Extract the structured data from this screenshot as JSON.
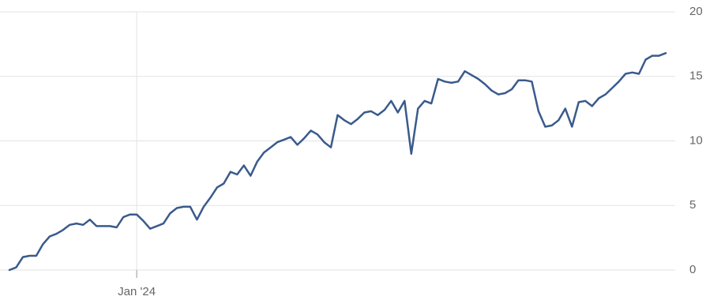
{
  "chart_data": {
    "type": "line",
    "categories": [
      null,
      null,
      null,
      null,
      null,
      null,
      null,
      null,
      null,
      null,
      null,
      null,
      null,
      null,
      null,
      null,
      null,
      null,
      null,
      "Jan '24",
      null,
      null,
      null,
      null,
      null,
      null,
      null,
      null,
      null,
      null,
      null,
      null,
      null,
      null,
      null,
      null,
      null,
      null,
      null,
      null,
      null,
      null,
      null,
      null,
      null,
      null,
      null,
      null,
      null,
      null,
      null,
      null,
      null,
      null,
      null,
      null,
      null,
      null,
      null,
      null,
      null,
      null,
      null,
      null,
      null,
      null,
      null,
      null,
      null,
      null,
      null,
      null,
      null,
      null,
      null,
      null,
      null,
      null,
      null,
      null,
      null,
      null,
      null,
      null,
      null,
      null,
      null,
      null,
      null,
      null,
      null,
      null,
      null,
      null,
      null,
      null,
      null,
      null,
      null
    ],
    "series": [
      {
        "color": "#3a5a8c",
        "values": [
          0,
          0.2,
          1.0,
          1.1,
          1.1,
          2.0,
          2.6,
          2.8,
          3.1,
          3.5,
          3.6,
          3.5,
          3.9,
          3.4,
          3.4,
          3.4,
          3.3,
          4.1,
          4.3,
          4.3,
          3.8,
          3.2,
          3.4,
          3.6,
          4.4,
          4.8,
          4.9,
          4.9,
          3.9,
          4.9,
          5.6,
          6.4,
          6.7,
          7.6,
          7.4,
          8.1,
          7.3,
          8.4,
          9.1,
          9.5,
          9.9,
          10.1,
          10.3,
          9.7,
          10.2,
          10.8,
          10.5,
          9.9,
          9.5,
          12.0,
          11.6,
          11.3,
          11.7,
          12.2,
          12.3,
          12.0,
          12.4,
          13.1,
          12.2,
          13.1,
          9.0,
          12.5,
          13.1,
          12.9,
          14.8,
          14.6,
          14.5,
          14.6,
          15.4,
          15.1,
          14.8,
          14.4,
          13.9,
          13.6,
          13.7,
          14.0,
          14.7,
          14.7,
          14.6,
          12.3,
          11.1,
          11.2,
          11.6,
          12.5,
          11.1,
          13.0,
          13.1,
          12.7,
          13.3,
          13.6,
          14.1,
          14.6,
          15.2,
          15.3,
          15.2,
          16.3,
          16.6,
          16.6,
          16.8
        ]
      }
    ],
    "ylim": [
      0,
      20
    ],
    "yticks": [
      0,
      5,
      10,
      15,
      20
    ],
    "grid": true
  }
}
